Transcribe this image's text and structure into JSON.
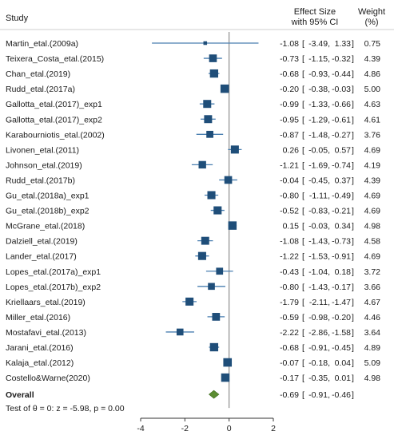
{
  "chart_data": {
    "type": "forest",
    "headers": {
      "study": "Study",
      "effect_line1": "Effect Size",
      "effect_line2": "with 95% CI",
      "weight_line1": "Weight",
      "weight_line2": "(%)"
    },
    "x_ticks": [
      -4,
      -2,
      0,
      2
    ],
    "xlim": [
      -4,
      2
    ],
    "studies": [
      {
        "name": "Martin_etal.(2009a)",
        "es": -1.08,
        "lo": -3.49,
        "hi": 1.33,
        "weight": 0.75
      },
      {
        "name": "Teixera_Costa_etal.(2015)",
        "es": -0.73,
        "lo": -1.15,
        "hi": -0.32,
        "weight": 4.39
      },
      {
        "name": "Chan_etal.(2019)",
        "es": -0.68,
        "lo": -0.93,
        "hi": -0.44,
        "weight": 4.86
      },
      {
        "name": "Rudd_etal.(2017a)",
        "es": -0.2,
        "lo": -0.38,
        "hi": -0.03,
        "weight": 5.0
      },
      {
        "name": "Gallotta_etal.(2017)_exp1",
        "es": -0.99,
        "lo": -1.33,
        "hi": -0.66,
        "weight": 4.63
      },
      {
        "name": "Gallotta_etal.(2017)_exp2",
        "es": -0.95,
        "lo": -1.29,
        "hi": -0.61,
        "weight": 4.61
      },
      {
        "name": "Karabourniotis_etal.(2002)",
        "es": -0.87,
        "lo": -1.48,
        "hi": -0.27,
        "weight": 3.76
      },
      {
        "name": "Livonen_etal.(2011)",
        "es": 0.26,
        "lo": -0.05,
        "hi": 0.57,
        "weight": 4.69
      },
      {
        "name": "Johnson_etal.(2019)",
        "es": -1.21,
        "lo": -1.69,
        "hi": -0.74,
        "weight": 4.19
      },
      {
        "name": "Rudd_etal.(2017b)",
        "es": -0.04,
        "lo": -0.45,
        "hi": 0.37,
        "weight": 4.39
      },
      {
        "name": "Gu_etal.(2018a)_exp1",
        "es": -0.8,
        "lo": -1.11,
        "hi": -0.49,
        "weight": 4.69
      },
      {
        "name": "Gu_etal.(2018b)_exp2",
        "es": -0.52,
        "lo": -0.83,
        "hi": -0.21,
        "weight": 4.69
      },
      {
        "name": "McGrane_etal.(2018)",
        "es": 0.15,
        "lo": -0.03,
        "hi": 0.34,
        "weight": 4.98
      },
      {
        "name": "Dalziell_etal.(2019)",
        "es": -1.08,
        "lo": -1.43,
        "hi": -0.73,
        "weight": 4.58
      },
      {
        "name": "Lander_etal.(2017)",
        "es": -1.22,
        "lo": -1.53,
        "hi": -0.91,
        "weight": 4.69
      },
      {
        "name": "Lopes_etal.(2017a)_exp1",
        "es": -0.43,
        "lo": -1.04,
        "hi": 0.18,
        "weight": 3.72
      },
      {
        "name": "Lopes_etal.(2017b)_exp2",
        "es": -0.8,
        "lo": -1.43,
        "hi": -0.17,
        "weight": 3.66
      },
      {
        "name": "Kriellaars_etal.(2019)",
        "es": -1.79,
        "lo": -2.11,
        "hi": -1.47,
        "weight": 4.67
      },
      {
        "name": "Miller_etal.(2016)",
        "es": -0.59,
        "lo": -0.98,
        "hi": -0.2,
        "weight": 4.46
      },
      {
        "name": "Mostafavi_etal.(2013)",
        "es": -2.22,
        "lo": -2.86,
        "hi": -1.58,
        "weight": 3.64
      },
      {
        "name": "Jarani_etal.(2016)",
        "es": -0.68,
        "lo": -0.91,
        "hi": -0.45,
        "weight": 4.89
      },
      {
        "name": "Kalaja_etal.(2012)",
        "es": -0.07,
        "lo": -0.18,
        "hi": 0.04,
        "weight": 5.09
      },
      {
        "name": "Costello&Warne(2020)",
        "es": -0.17,
        "lo": -0.35,
        "hi": 0.01,
        "weight": 4.98
      }
    ],
    "overall": {
      "label": "Overall",
      "es": -0.69,
      "lo": -0.91,
      "hi": -0.46
    },
    "test_text": "Test of θ = 0: z = -5.98, p = 0.00",
    "colors": {
      "marker": "#1f4e79",
      "ci_line": "#4a7fb0",
      "overall": "#5b8c32",
      "text": "#1a1a1a",
      "zero_line": "#777777"
    }
  }
}
